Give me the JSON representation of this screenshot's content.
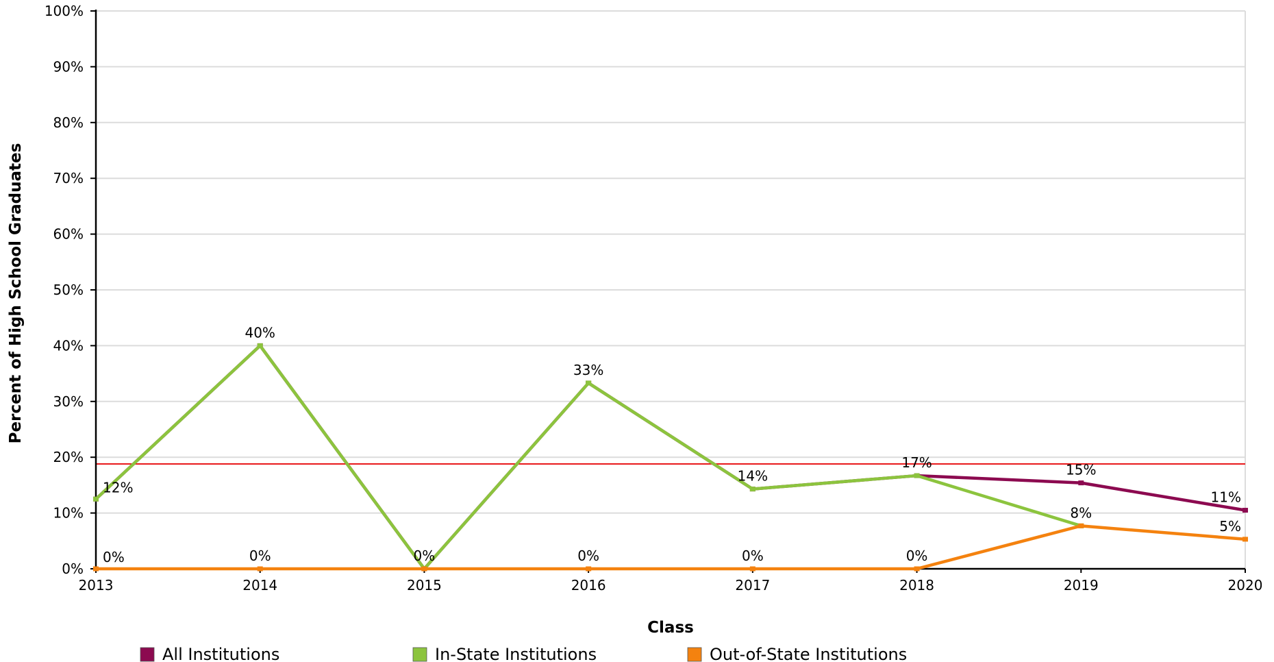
{
  "chart_data": {
    "type": "line",
    "title": "",
    "xlabel": "Class",
    "ylabel": "Percent of High School Graduates",
    "categories": [
      "2013",
      "2014",
      "2015",
      "2016",
      "2017",
      "2018",
      "2019",
      "2020"
    ],
    "ylim": [
      0,
      100
    ],
    "yticks": [
      "0%",
      "10%",
      "20%",
      "30%",
      "40%",
      "50%",
      "60%",
      "70%",
      "80%",
      "90%",
      "100%"
    ],
    "grid": true,
    "legend_position": "bottom",
    "reference_line": {
      "value": 18.8,
      "color": "#e8191b"
    },
    "series": [
      {
        "name": "All Institutions",
        "color": "#8c0a50",
        "values": [
          12.5,
          40,
          0,
          33.3,
          14.3,
          16.7,
          15.4,
          10.5
        ],
        "labels": [
          "",
          "",
          "",
          "",
          "",
          "",
          "15%",
          "11%"
        ]
      },
      {
        "name": "In-State Institutions",
        "color": "#8cc43e",
        "values": [
          12.5,
          40,
          0,
          33.3,
          14.3,
          16.7,
          7.7,
          null
        ],
        "labels": [
          "12%",
          "40%",
          "",
          "33%",
          "14%",
          "17%",
          "",
          ""
        ]
      },
      {
        "name": "Out-of-State Institutions",
        "color": "#f4820f",
        "values": [
          0,
          0,
          0,
          0,
          0,
          0,
          7.7,
          5.3
        ],
        "labels": [
          "0%",
          "0%",
          "0%",
          "0%",
          "0%",
          "0%",
          "8%",
          "5%"
        ]
      }
    ]
  }
}
